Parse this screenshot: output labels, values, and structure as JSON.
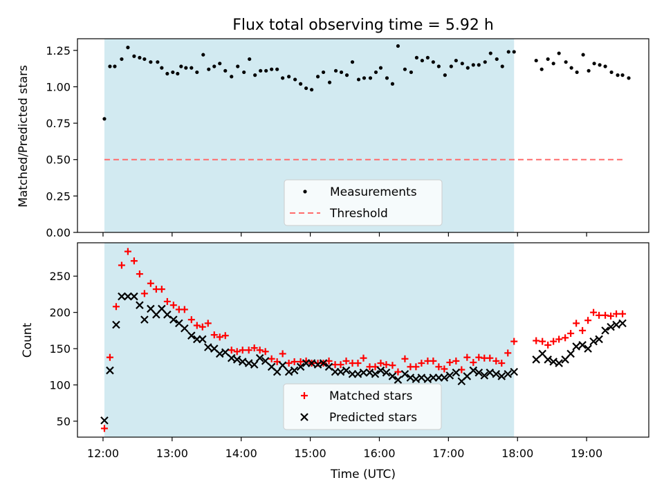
{
  "chart_data": [
    {
      "type": "scatter",
      "title": "Flux total observing time = 5.92 h",
      "ylabel": "Matched/Predicted stars",
      "xlabel": "",
      "xlim": [
        11.63,
        19.9
      ],
      "ylim": [
        0.0,
        1.33
      ],
      "yticks": [
        0.0,
        0.25,
        0.5,
        0.75,
        1.0,
        1.25
      ],
      "ytick_labels": [
        "0.00",
        "0.25",
        "0.50",
        "0.75",
        "1.00",
        "1.25"
      ],
      "xticks": [
        12,
        13,
        14,
        15,
        16,
        17,
        18,
        19
      ],
      "xtick_labels": [],
      "shaded_span": {
        "start": 12.02,
        "end": 17.95,
        "color": "#add8e6"
      },
      "legend": {
        "position": "lower center",
        "entries": [
          "Measurements",
          "Threshold"
        ]
      },
      "grid": false,
      "series": [
        {
          "name": "Measurements",
          "marker": "dot",
          "color": "#000000",
          "x": [
            12.02,
            12.1,
            12.17,
            12.27,
            12.36,
            12.45,
            12.53,
            12.6,
            12.69,
            12.79,
            12.85,
            12.93,
            13.01,
            13.08,
            13.13,
            13.2,
            13.28,
            13.36,
            13.45,
            13.53,
            13.61,
            13.69,
            13.77,
            13.86,
            13.95,
            14.04,
            14.12,
            14.2,
            14.28,
            14.36,
            14.44,
            14.52,
            14.6,
            14.69,
            14.78,
            14.86,
            14.94,
            15.02,
            15.11,
            15.19,
            15.28,
            15.37,
            15.45,
            15.53,
            15.61,
            15.7,
            15.78,
            15.87,
            15.95,
            16.02,
            16.11,
            16.19,
            16.27,
            16.37,
            16.46,
            16.54,
            16.62,
            16.7,
            16.78,
            16.86,
            16.95,
            17.04,
            17.11,
            17.2,
            17.28,
            17.36,
            17.44,
            17.53,
            17.61,
            17.7,
            17.78,
            17.87,
            17.95,
            18.27,
            18.35,
            18.44,
            18.52,
            18.6,
            18.7,
            18.78,
            18.86,
            18.95,
            19.03,
            19.11,
            19.19,
            19.27,
            19.36,
            19.45,
            19.52,
            19.61
          ],
          "y": [
            0.78,
            1.14,
            1.14,
            1.19,
            1.27,
            1.21,
            1.2,
            1.19,
            1.17,
            1.17,
            1.13,
            1.09,
            1.1,
            1.09,
            1.14,
            1.13,
            1.13,
            1.1,
            1.22,
            1.12,
            1.14,
            1.16,
            1.11,
            1.07,
            1.14,
            1.1,
            1.19,
            1.08,
            1.11,
            1.11,
            1.12,
            1.12,
            1.06,
            1.07,
            1.05,
            1.02,
            0.99,
            0.98,
            1.07,
            1.1,
            1.03,
            1.11,
            1.1,
            1.08,
            1.17,
            1.05,
            1.06,
            1.06,
            1.1,
            1.13,
            1.06,
            1.02,
            1.28,
            1.12,
            1.1,
            1.2,
            1.18,
            1.2,
            1.17,
            1.14,
            1.08,
            1.14,
            1.18,
            1.16,
            1.13,
            1.15,
            1.15,
            1.17,
            1.23,
            1.19,
            1.14,
            1.24,
            1.24,
            1.18,
            1.12,
            1.19,
            1.16,
            1.23,
            1.17,
            1.13,
            1.1,
            1.22,
            1.11,
            1.16,
            1.15,
            1.14,
            1.1,
            1.08,
            1.08,
            1.06
          ]
        },
        {
          "name": "Threshold",
          "marker": "dashed-line",
          "color": "#ff6b6b",
          "x": [
            12.02,
            19.55
          ],
          "y": [
            0.5,
            0.5
          ]
        }
      ]
    },
    {
      "type": "scatter",
      "title": "",
      "ylabel": "Count",
      "xlabel": "Time (UTC)",
      "xlim": [
        11.63,
        19.9
      ],
      "ylim": [
        28,
        296
      ],
      "yticks": [
        50,
        100,
        150,
        200,
        250
      ],
      "ytick_labels": [
        "50",
        "100",
        "150",
        "200",
        "250"
      ],
      "xticks": [
        12,
        13,
        14,
        15,
        16,
        17,
        18,
        19
      ],
      "xtick_labels": [
        "12:00",
        "13:00",
        "14:00",
        "15:00",
        "16:00",
        "17:00",
        "18:00",
        "19:00"
      ],
      "shaded_span": {
        "start": 12.02,
        "end": 17.95,
        "color": "#add8e6"
      },
      "legend": {
        "position": "lower center",
        "entries": [
          "Matched stars",
          "Predicted stars"
        ]
      },
      "grid": false,
      "series": [
        {
          "name": "Matched stars",
          "marker": "plus",
          "color": "#ff0000",
          "x": [
            12.02,
            12.1,
            12.19,
            12.27,
            12.36,
            12.45,
            12.53,
            12.6,
            12.69,
            12.77,
            12.85,
            12.93,
            13.02,
            13.1,
            13.18,
            13.28,
            13.36,
            13.44,
            13.52,
            13.61,
            13.69,
            13.77,
            13.86,
            13.94,
            14.02,
            14.11,
            14.19,
            14.27,
            14.35,
            14.44,
            14.52,
            14.6,
            14.69,
            14.77,
            14.86,
            14.94,
            15.02,
            15.11,
            15.19,
            15.27,
            15.36,
            15.44,
            15.52,
            15.61,
            15.69,
            15.77,
            15.86,
            15.94,
            16.02,
            16.1,
            16.19,
            16.27,
            16.37,
            16.45,
            16.53,
            16.61,
            16.7,
            16.78,
            16.86,
            16.94,
            17.02,
            17.11,
            17.19,
            17.27,
            17.36,
            17.44,
            17.52,
            17.6,
            17.69,
            17.77,
            17.86,
            17.95,
            18.27,
            18.36,
            18.44,
            18.52,
            18.6,
            18.69,
            18.77,
            18.85,
            18.94,
            19.02,
            19.1,
            19.18,
            19.27,
            19.35,
            19.43,
            19.52
          ],
          "y": [
            40,
            138,
            208,
            265,
            284,
            271,
            253,
            226,
            240,
            232,
            232,
            215,
            210,
            204,
            204,
            190,
            182,
            180,
            185,
            169,
            166,
            168,
            148,
            146,
            148,
            148,
            151,
            148,
            146,
            136,
            132,
            143,
            130,
            132,
            132,
            133,
            130,
            130,
            130,
            133,
            128,
            128,
            133,
            130,
            130,
            137,
            125,
            125,
            130,
            128,
            127,
            118,
            136,
            125,
            125,
            130,
            133,
            133,
            125,
            122,
            131,
            133,
            121,
            138,
            131,
            138,
            137,
            137,
            133,
            130,
            144,
            160,
            161,
            160,
            155,
            160,
            163,
            165,
            171,
            185,
            175,
            189,
            200,
            196,
            196,
            195,
            198,
            198
          ]
        },
        {
          "name": "Predicted stars",
          "marker": "x",
          "color": "#000000",
          "x": [
            12.02,
            12.1,
            12.19,
            12.27,
            12.36,
            12.45,
            12.53,
            12.6,
            12.69,
            12.77,
            12.85,
            12.93,
            13.02,
            13.1,
            13.18,
            13.28,
            13.36,
            13.44,
            13.52,
            13.61,
            13.69,
            13.77,
            13.86,
            13.94,
            14.02,
            14.11,
            14.19,
            14.27,
            14.35,
            14.44,
            14.52,
            14.6,
            14.69,
            14.77,
            14.86,
            14.94,
            15.02,
            15.11,
            15.19,
            15.27,
            15.36,
            15.44,
            15.52,
            15.61,
            15.69,
            15.77,
            15.86,
            15.94,
            16.02,
            16.1,
            16.19,
            16.27,
            16.37,
            16.45,
            16.53,
            16.61,
            16.7,
            16.78,
            16.86,
            16.94,
            17.02,
            17.11,
            17.19,
            17.27,
            17.36,
            17.44,
            17.52,
            17.6,
            17.69,
            17.77,
            17.86,
            17.95,
            18.27,
            18.36,
            18.44,
            18.52,
            18.6,
            18.69,
            18.77,
            18.85,
            18.94,
            19.02,
            19.1,
            19.18,
            19.27,
            19.35,
            19.43,
            19.52
          ],
          "y": [
            51,
            120,
            183,
            222,
            222,
            222,
            210,
            190,
            205,
            197,
            205,
            197,
            190,
            185,
            178,
            168,
            163,
            163,
            152,
            150,
            143,
            145,
            137,
            135,
            132,
            130,
            128,
            137,
            133,
            125,
            118,
            127,
            118,
            120,
            125,
            130,
            130,
            128,
            130,
            125,
            118,
            118,
            120,
            115,
            115,
            117,
            117,
            115,
            120,
            117,
            112,
            107,
            115,
            110,
            108,
            110,
            108,
            110,
            110,
            110,
            113,
            117,
            105,
            112,
            120,
            117,
            113,
            117,
            115,
            112,
            115,
            118,
            135,
            143,
            135,
            132,
            130,
            135,
            143,
            153,
            155,
            150,
            160,
            163,
            175,
            180,
            183,
            185
          ]
        }
      ]
    }
  ]
}
